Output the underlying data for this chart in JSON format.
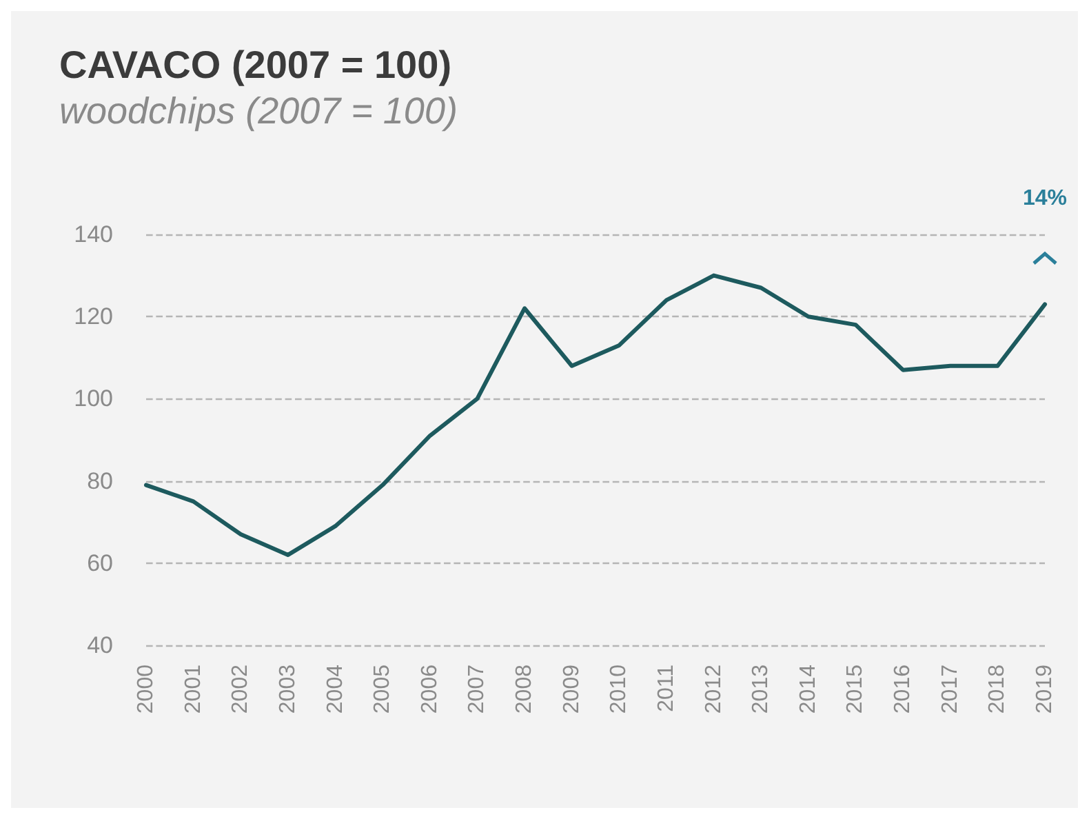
{
  "chart_data": {
    "type": "line",
    "title": "CAVACO (2007 = 100)",
    "subtitle": "woodchips (2007 = 100)",
    "categories": [
      "2000",
      "2001",
      "2002",
      "2003",
      "2004",
      "2005",
      "2006",
      "2007",
      "2008",
      "2009",
      "2010",
      "2011",
      "2012",
      "2013",
      "2014",
      "2015",
      "2016",
      "2017",
      "2018",
      "2019"
    ],
    "series": [
      {
        "color": "#1d5a5e",
        "values": [
          79,
          75,
          67,
          62,
          69,
          79,
          91,
          100,
          122,
          108,
          113,
          124,
          130,
          127,
          120,
          118,
          107,
          108,
          108,
          123
        ]
      }
    ],
    "ylim": [
      40,
      140
    ],
    "yticks": [
      40,
      60,
      80,
      100,
      120,
      140
    ],
    "grid": "y",
    "marker": "none",
    "line_style": "solid",
    "annotations": [
      "14%"
    ]
  }
}
